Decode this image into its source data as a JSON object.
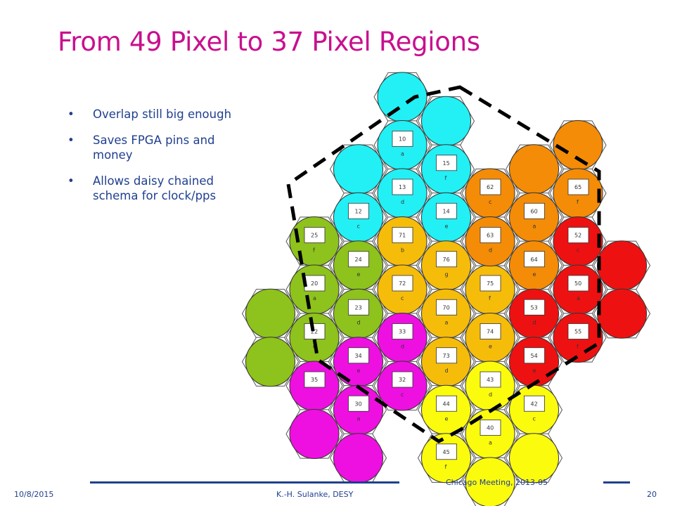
{
  "slide": {
    "title": "From 49 Pixel to 37 Pixel Regions",
    "bullets": [
      "Overlap still big enough",
      "Saves FPGA pins and money",
      "Allows daisy chained schema for clock/pps"
    ]
  },
  "colors": {
    "title": "#c8108e",
    "text": "#1f3f8f",
    "cyan": "#22f0f4",
    "green": "#8ec21c",
    "amber": "#f5bc0a",
    "orange": "#f48c07",
    "red": "#ee1111",
    "magenta": "#ee10e0",
    "yellow": "#fbfb0e"
  },
  "pixels": [
    {
      "c": 0,
      "r": 0,
      "color": "cyan",
      "num": "",
      "sub": ""
    },
    {
      "c": 1,
      "r": 0,
      "color": "cyan",
      "num": "",
      "sub": ""
    },
    {
      "c": -1,
      "r": 1,
      "color": "cyan",
      "num": "",
      "sub": ""
    },
    {
      "c": -1,
      "r": 2,
      "color": "cyan",
      "num": "12",
      "sub": "c"
    },
    {
      "c": 0,
      "r": 1,
      "color": "cyan",
      "num": "10",
      "sub": "a"
    },
    {
      "c": 1,
      "r": 1,
      "color": "cyan",
      "num": "15",
      "sub": "f"
    },
    {
      "c": 0,
      "r": 2,
      "color": "cyan",
      "num": "13",
      "sub": "d"
    },
    {
      "c": 1,
      "r": 2,
      "color": "cyan",
      "num": "14",
      "sub": "e"
    },
    {
      "c": -2,
      "r": 3,
      "color": "green",
      "num": "25",
      "sub": "f"
    },
    {
      "c": -3,
      "r": 4,
      "color": "green",
      "num": "",
      "sub": ""
    },
    {
      "c": -3,
      "r": 5,
      "color": "green",
      "num": "",
      "sub": ""
    },
    {
      "c": -2,
      "r": 4,
      "color": "green",
      "num": "20",
      "sub": "a"
    },
    {
      "c": -1,
      "r": 3,
      "color": "green",
      "num": "24",
      "sub": "e"
    },
    {
      "c": -1,
      "r": 4,
      "color": "green",
      "num": "23",
      "sub": "d"
    },
    {
      "c": -2,
      "r": 5,
      "color": "green",
      "num": "22",
      "sub": "c"
    },
    {
      "c": 0,
      "r": 3,
      "color": "amber",
      "num": "71",
      "sub": "b"
    },
    {
      "c": 0,
      "r": 4,
      "color": "amber",
      "num": "72",
      "sub": "c"
    },
    {
      "c": 1,
      "r": 3,
      "color": "amber",
      "num": "76",
      "sub": "g"
    },
    {
      "c": 1,
      "r": 4,
      "color": "amber",
      "num": "70",
      "sub": "a"
    },
    {
      "c": 1,
      "r": 5,
      "color": "amber",
      "num": "73",
      "sub": "d"
    },
    {
      "c": 2,
      "r": 4,
      "color": "amber",
      "num": "75",
      "sub": "f"
    },
    {
      "c": 2,
      "r": 5,
      "color": "amber",
      "num": "74",
      "sub": "e"
    },
    {
      "c": 3,
      "r": 1,
      "color": "orange",
      "num": "",
      "sub": ""
    },
    {
      "c": 4,
      "r": 1,
      "color": "orange",
      "num": "",
      "sub": ""
    },
    {
      "c": 2,
      "r": 2,
      "color": "orange",
      "num": "62",
      "sub": "c"
    },
    {
      "c": 3,
      "r": 2,
      "color": "orange",
      "num": "60",
      "sub": "a"
    },
    {
      "c": 2,
      "r": 3,
      "color": "orange",
      "num": "63",
      "sub": "d"
    },
    {
      "c": 3,
      "r": 3,
      "color": "orange",
      "num": "64",
      "sub": "e"
    },
    {
      "c": 4,
      "r": 2,
      "color": "orange",
      "num": "65",
      "sub": "f"
    },
    {
      "c": 4,
      "r": 3,
      "color": "red",
      "num": "52",
      "sub": "c"
    },
    {
      "c": 5,
      "r": 3,
      "color": "red",
      "num": "",
      "sub": ""
    },
    {
      "c": 5,
      "r": 4,
      "color": "red",
      "num": "",
      "sub": ""
    },
    {
      "c": 3,
      "r": 4,
      "color": "red",
      "num": "53",
      "sub": "d"
    },
    {
      "c": 3,
      "r": 5,
      "color": "red",
      "num": "54",
      "sub": "e"
    },
    {
      "c": 4,
      "r": 4,
      "color": "red",
      "num": "50",
      "sub": "a"
    },
    {
      "c": 4,
      "r": 5,
      "color": "red",
      "num": "55",
      "sub": "f"
    },
    {
      "c": -2,
      "r": 6,
      "color": "magenta",
      "num": "35",
      "sub": ""
    },
    {
      "c": -1,
      "r": 5,
      "color": "magenta",
      "num": "34",
      "sub": "e"
    },
    {
      "c": -1,
      "r": 6,
      "color": "magenta",
      "num": "30",
      "sub": "a"
    },
    {
      "c": 0,
      "r": 5,
      "color": "magenta",
      "num": "33",
      "sub": "d"
    },
    {
      "c": 0,
      "r": 6,
      "color": "magenta",
      "num": "32",
      "sub": "c"
    },
    {
      "c": -2,
      "r": 7,
      "color": "magenta",
      "num": "",
      "sub": ""
    },
    {
      "c": -1,
      "r": 7,
      "color": "magenta",
      "num": "",
      "sub": ""
    },
    {
      "c": 1,
      "r": 6,
      "color": "yellow",
      "num": "44",
      "sub": "e"
    },
    {
      "c": 1,
      "r": 7,
      "color": "yellow",
      "num": "45",
      "sub": "f"
    },
    {
      "c": 2,
      "r": 6,
      "color": "yellow",
      "num": "43",
      "sub": "d"
    },
    {
      "c": 2,
      "r": 7,
      "color": "yellow",
      "num": "40",
      "sub": "a"
    },
    {
      "c": 3,
      "r": 6,
      "color": "yellow",
      "num": "42",
      "sub": "c"
    },
    {
      "c": 3,
      "r": 7,
      "color": "yellow",
      "num": "",
      "sub": ""
    },
    {
      "c": 2,
      "r": 8,
      "color": "yellow",
      "num": "",
      "sub": ""
    }
  ],
  "footer": {
    "date": "10/8/2015",
    "author": "K.-H. Sulanke, DESY",
    "meeting": "Chicago Meeting, 2013-05",
    "page": "20"
  }
}
